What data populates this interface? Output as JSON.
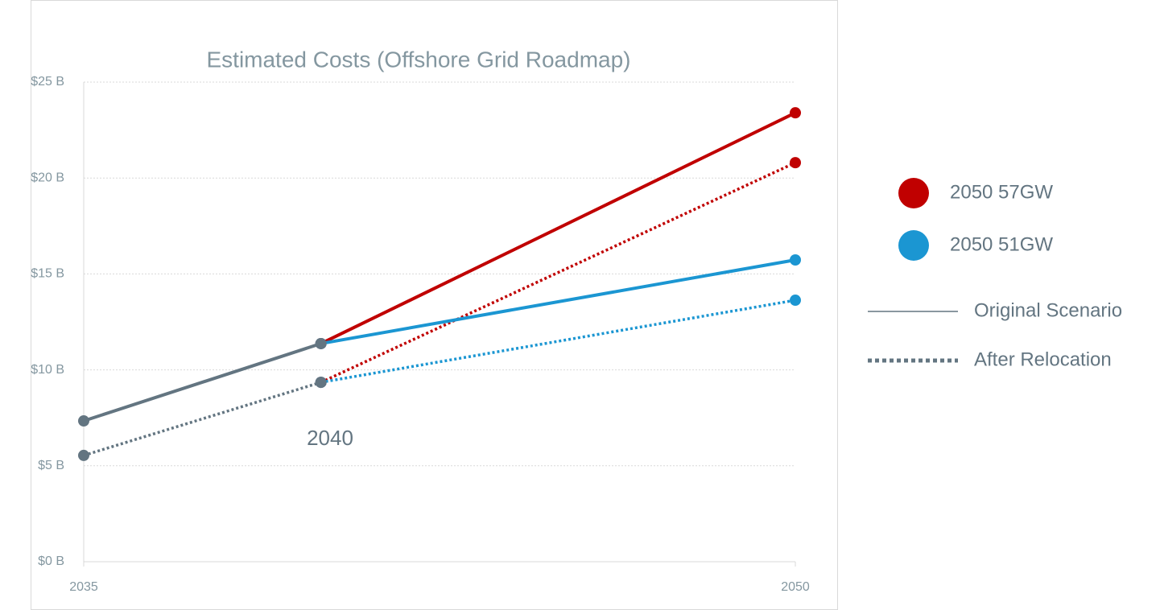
{
  "chart_data": {
    "type": "line",
    "title": "Estimated Costs (Offshore Grid Roadmap)",
    "x": [
      2035,
      2040,
      2050
    ],
    "xlim": [
      2035,
      2050
    ],
    "xticks": [
      2035,
      2050
    ],
    "ylim": [
      0,
      25
    ],
    "yticks": [
      {
        "value": 0,
        "label": "$0 B"
      },
      {
        "value": 5,
        "label": "$5 B"
      },
      {
        "value": 10,
        "label": "$10 B"
      },
      {
        "value": 15,
        "label": "$15 B"
      },
      {
        "value": 20,
        "label": "$20 B"
      },
      {
        "value": 25,
        "label": "$25 B"
      }
    ],
    "grid": true,
    "series": [
      {
        "color": "#c00000",
        "style": "solid",
        "values": [
          null,
          11.37,
          23.4
        ]
      },
      {
        "color": "#c00000",
        "style": "dotted",
        "values": [
          null,
          9.35,
          20.8
        ]
      },
      {
        "color": "#1b96d2",
        "style": "solid",
        "values": [
          null,
          11.37,
          15.73
        ]
      },
      {
        "color": "#1b96d2",
        "style": "dotted",
        "values": [
          null,
          9.35,
          13.63
        ]
      },
      {
        "color": "#637581",
        "style": "solid",
        "values": [
          7.34,
          11.37,
          null
        ]
      },
      {
        "color": "#637581",
        "style": "dotted",
        "values": [
          5.54,
          9.35,
          null
        ]
      }
    ],
    "annotation": "2040",
    "legend": [
      {
        "label": "2050 57GW",
        "color": "#c00000",
        "symbol": "circle"
      },
      {
        "label": "2050 51GW",
        "color": "#1b96d2",
        "symbol": "circle"
      },
      {
        "label": "Original Scenario",
        "color": "#637581",
        "symbol": "solid"
      },
      {
        "label": "After Relocation",
        "color": "#637581",
        "symbol": "dotted"
      }
    ]
  }
}
